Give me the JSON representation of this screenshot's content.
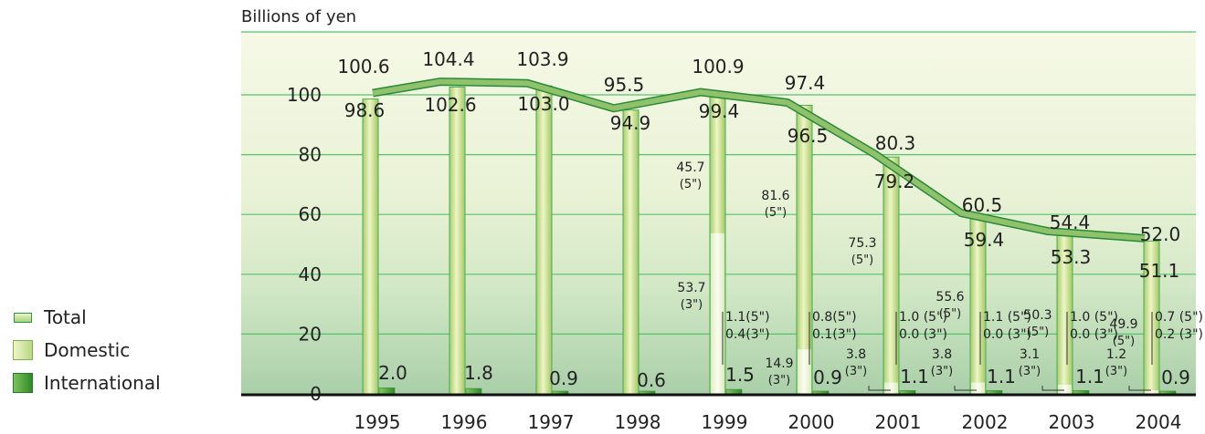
{
  "chart_data": {
    "type": "bar",
    "unit_label": "Billions of yen",
    "categories": [
      "1995",
      "1996",
      "1997",
      "1998",
      "1999",
      "2000",
      "2001",
      "2002",
      "2003",
      "2004"
    ],
    "ylim": [
      0,
      100
    ],
    "yticks": [
      0,
      20,
      40,
      60,
      80,
      100
    ],
    "grid": true,
    "legend_position": "left",
    "colors": {
      "total_line": "#8fc26a",
      "domestic": "#d6eaa2",
      "international": "#3c9a34",
      "grid": "#58c26e",
      "axis": "#111111",
      "plot_band": "#e8f2d4"
    },
    "series": [
      {
        "name": "Total",
        "type": "line",
        "values": [
          100.6,
          104.4,
          103.9,
          95.5,
          100.9,
          97.4,
          80.3,
          60.5,
          54.4,
          52.0
        ]
      },
      {
        "name": "Domestic",
        "type": "bar",
        "values": [
          98.6,
          102.6,
          103.0,
          94.9,
          99.4,
          96.5,
          79.2,
          59.4,
          53.3,
          51.1
        ]
      },
      {
        "name": "International",
        "type": "bar",
        "values": [
          2.0,
          1.8,
          0.9,
          0.6,
          1.5,
          0.9,
          1.1,
          1.1,
          1.1,
          0.9
        ]
      }
    ],
    "domestic_breakdown": [
      null,
      null,
      null,
      null,
      {
        "five": 45.7,
        "five_label": "(5\")",
        "three": 53.7,
        "three_label": "(3\")"
      },
      {
        "five": 81.6,
        "five_label": "(5\")",
        "three": 14.9,
        "three_label": "(3\")"
      },
      {
        "five": 75.3,
        "five_label": "(5\")",
        "three": 3.8,
        "three_label": "(3\")"
      },
      {
        "five": 55.6,
        "five_label": "(5\")",
        "three": 3.8,
        "three_label": "(3\")"
      },
      {
        "five": 50.3,
        "five_label": "(5\")",
        "three": 3.1,
        "three_label": "(3\")"
      },
      {
        "five": 49.9,
        "five_label": "(5\")",
        "three": 1.2,
        "three_label": "(3\")"
      }
    ],
    "international_breakdown": [
      null,
      null,
      null,
      null,
      {
        "five": "1.1(5\")",
        "three": "0.4(3\")"
      },
      {
        "five": "0.8(5\")",
        "three": "0.1(3\")"
      },
      {
        "five": "1.0 (5\")",
        "three": "0.0 (3\")"
      },
      {
        "five": "1.1 (5\")",
        "three": "0.0 (3\")"
      },
      {
        "five": "1.0 (5\")",
        "three": "0.0 (3\")"
      },
      {
        "five": "0.7 (5\")",
        "three": "0.2 (3\")"
      }
    ]
  },
  "legend": {
    "items": [
      {
        "label": "Total"
      },
      {
        "label": "Domestic"
      },
      {
        "label": "International"
      }
    ]
  }
}
